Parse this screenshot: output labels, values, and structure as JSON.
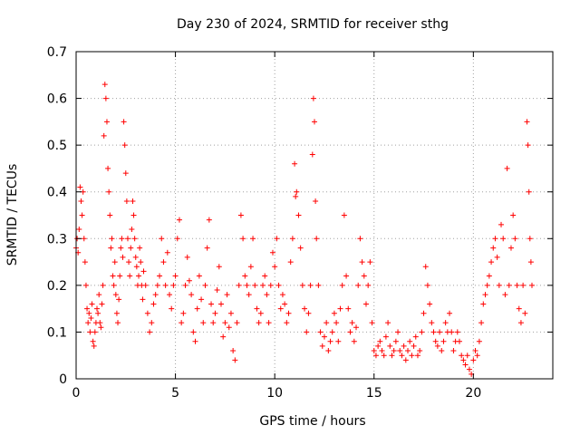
{
  "chart_data": {
    "type": "scatter",
    "title": "Day 230 of 2024, SRMTID for receiver sthg",
    "xlabel": "GPS time / hours",
    "ylabel": "SRMTID / TECUs",
    "xlim": [
      0,
      24
    ],
    "ylim": [
      0,
      0.7
    ],
    "xticks": [
      0,
      5,
      10,
      15,
      20
    ],
    "xtick_labels": [
      "0",
      "5",
      "10",
      "15",
      "20"
    ],
    "yticks": [
      0,
      0.1,
      0.2,
      0.3,
      0.4,
      0.5,
      0.6,
      0.7
    ],
    "ytick_labels": [
      "0",
      "0.1",
      "0.2",
      "0.3",
      "0.4",
      "0.5",
      "0.6",
      "0.7"
    ],
    "grid": true,
    "marker": "+",
    "color": "#ff0000",
    "series": [
      {
        "name": "SRMTID",
        "points": [
          [
            0.0,
            0.28
          ],
          [
            0.05,
            0.3
          ],
          [
            0.1,
            0.27
          ],
          [
            0.15,
            0.32
          ],
          [
            0.2,
            0.41
          ],
          [
            0.25,
            0.38
          ],
          [
            0.3,
            0.35
          ],
          [
            0.35,
            0.4
          ],
          [
            0.4,
            0.3
          ],
          [
            0.45,
            0.25
          ],
          [
            0.5,
            0.2
          ],
          [
            0.55,
            0.15
          ],
          [
            0.6,
            0.12
          ],
          [
            0.65,
            0.14
          ],
          [
            0.7,
            0.1
          ],
          [
            0.75,
            0.13
          ],
          [
            0.8,
            0.16
          ],
          [
            0.85,
            0.08
          ],
          [
            0.9,
            0.07
          ],
          [
            0.95,
            0.1
          ],
          [
            1.0,
            0.12
          ],
          [
            1.05,
            0.15
          ],
          [
            1.1,
            0.14
          ],
          [
            1.15,
            0.18
          ],
          [
            1.2,
            0.12
          ],
          [
            1.25,
            0.11
          ],
          [
            1.3,
            0.16
          ],
          [
            1.35,
            0.2
          ],
          [
            1.4,
            0.52
          ],
          [
            1.45,
            0.63
          ],
          [
            1.5,
            0.6
          ],
          [
            1.55,
            0.55
          ],
          [
            1.6,
            0.45
          ],
          [
            1.65,
            0.4
          ],
          [
            1.7,
            0.35
          ],
          [
            1.75,
            0.28
          ],
          [
            1.8,
            0.3
          ],
          [
            1.85,
            0.22
          ],
          [
            1.9,
            0.2
          ],
          [
            1.95,
            0.25
          ],
          [
            2.0,
            0.18
          ],
          [
            2.05,
            0.14
          ],
          [
            2.1,
            0.12
          ],
          [
            2.15,
            0.17
          ],
          [
            2.2,
            0.22
          ],
          [
            2.25,
            0.28
          ],
          [
            2.3,
            0.3
          ],
          [
            2.35,
            0.26
          ],
          [
            2.4,
            0.55
          ],
          [
            2.45,
            0.5
          ],
          [
            2.5,
            0.44
          ],
          [
            2.55,
            0.38
          ],
          [
            2.6,
            0.3
          ],
          [
            2.65,
            0.25
          ],
          [
            2.7,
            0.22
          ],
          [
            2.75,
            0.28
          ],
          [
            2.8,
            0.32
          ],
          [
            2.85,
            0.38
          ],
          [
            2.9,
            0.35
          ],
          [
            2.95,
            0.3
          ],
          [
            3.0,
            0.26
          ],
          [
            3.05,
            0.24
          ],
          [
            3.1,
            0.2
          ],
          [
            3.15,
            0.22
          ],
          [
            3.2,
            0.28
          ],
          [
            3.25,
            0.25
          ],
          [
            3.3,
            0.2
          ],
          [
            3.35,
            0.17
          ],
          [
            3.4,
            0.23
          ],
          [
            3.5,
            0.2
          ],
          [
            3.6,
            0.14
          ],
          [
            3.7,
            0.1
          ],
          [
            3.8,
            0.12
          ],
          [
            3.9,
            0.16
          ],
          [
            4.0,
            0.18
          ],
          [
            4.1,
            0.2
          ],
          [
            4.2,
            0.22
          ],
          [
            4.3,
            0.3
          ],
          [
            4.4,
            0.25
          ],
          [
            4.5,
            0.2
          ],
          [
            4.6,
            0.27
          ],
          [
            4.7,
            0.18
          ],
          [
            4.8,
            0.15
          ],
          [
            4.9,
            0.2
          ],
          [
            5.0,
            0.22
          ],
          [
            5.1,
            0.3
          ],
          [
            5.2,
            0.34
          ],
          [
            5.3,
            0.12
          ],
          [
            5.4,
            0.14
          ],
          [
            5.5,
            0.2
          ],
          [
            5.6,
            0.26
          ],
          [
            5.7,
            0.21
          ],
          [
            5.8,
            0.18
          ],
          [
            5.9,
            0.1
          ],
          [
            6.0,
            0.08
          ],
          [
            6.1,
            0.15
          ],
          [
            6.2,
            0.22
          ],
          [
            6.3,
            0.17
          ],
          [
            6.4,
            0.12
          ],
          [
            6.5,
            0.2
          ],
          [
            6.6,
            0.28
          ],
          [
            6.7,
            0.34
          ],
          [
            6.8,
            0.16
          ],
          [
            6.9,
            0.12
          ],
          [
            7.0,
            0.14
          ],
          [
            7.1,
            0.19
          ],
          [
            7.2,
            0.24
          ],
          [
            7.3,
            0.16
          ],
          [
            7.4,
            0.09
          ],
          [
            7.5,
            0.12
          ],
          [
            7.6,
            0.18
          ],
          [
            7.7,
            0.11
          ],
          [
            7.8,
            0.14
          ],
          [
            7.9,
            0.06
          ],
          [
            8.0,
            0.04
          ],
          [
            8.1,
            0.12
          ],
          [
            8.2,
            0.2
          ],
          [
            8.3,
            0.35
          ],
          [
            8.4,
            0.3
          ],
          [
            8.5,
            0.22
          ],
          [
            8.6,
            0.2
          ],
          [
            8.7,
            0.18
          ],
          [
            8.8,
            0.24
          ],
          [
            8.9,
            0.3
          ],
          [
            9.0,
            0.2
          ],
          [
            9.1,
            0.15
          ],
          [
            9.2,
            0.12
          ],
          [
            9.3,
            0.14
          ],
          [
            9.4,
            0.2
          ],
          [
            9.5,
            0.22
          ],
          [
            9.6,
            0.18
          ],
          [
            9.7,
            0.12
          ],
          [
            9.8,
            0.2
          ],
          [
            9.9,
            0.27
          ],
          [
            10.0,
            0.24
          ],
          [
            10.1,
            0.3
          ],
          [
            10.2,
            0.2
          ],
          [
            10.3,
            0.15
          ],
          [
            10.4,
            0.18
          ],
          [
            10.5,
            0.16
          ],
          [
            10.6,
            0.12
          ],
          [
            10.7,
            0.14
          ],
          [
            10.8,
            0.25
          ],
          [
            10.9,
            0.3
          ],
          [
            11.0,
            0.46
          ],
          [
            11.05,
            0.39
          ],
          [
            11.1,
            0.4
          ],
          [
            11.2,
            0.35
          ],
          [
            11.3,
            0.28
          ],
          [
            11.4,
            0.2
          ],
          [
            11.5,
            0.15
          ],
          [
            11.6,
            0.1
          ],
          [
            11.7,
            0.14
          ],
          [
            11.8,
            0.2
          ],
          [
            11.9,
            0.48
          ],
          [
            11.95,
            0.6
          ],
          [
            12.0,
            0.55
          ],
          [
            12.05,
            0.38
          ],
          [
            12.1,
            0.3
          ],
          [
            12.2,
            0.2
          ],
          [
            12.3,
            0.1
          ],
          [
            12.4,
            0.07
          ],
          [
            12.5,
            0.09
          ],
          [
            12.6,
            0.12
          ],
          [
            12.7,
            0.06
          ],
          [
            12.8,
            0.08
          ],
          [
            12.9,
            0.1
          ],
          [
            13.0,
            0.14
          ],
          [
            13.1,
            0.12
          ],
          [
            13.2,
            0.08
          ],
          [
            13.3,
            0.15
          ],
          [
            13.4,
            0.2
          ],
          [
            13.5,
            0.35
          ],
          [
            13.6,
            0.22
          ],
          [
            13.7,
            0.15
          ],
          [
            13.8,
            0.1
          ],
          [
            13.9,
            0.12
          ],
          [
            14.0,
            0.08
          ],
          [
            14.1,
            0.11
          ],
          [
            14.2,
            0.2
          ],
          [
            14.3,
            0.3
          ],
          [
            14.4,
            0.25
          ],
          [
            14.5,
            0.22
          ],
          [
            14.6,
            0.16
          ],
          [
            14.7,
            0.2
          ],
          [
            14.8,
            0.25
          ],
          [
            14.9,
            0.12
          ],
          [
            15.0,
            0.06
          ],
          [
            15.1,
            0.05
          ],
          [
            15.2,
            0.07
          ],
          [
            15.3,
            0.08
          ],
          [
            15.4,
            0.06
          ],
          [
            15.5,
            0.05
          ],
          [
            15.6,
            0.09
          ],
          [
            15.7,
            0.12
          ],
          [
            15.8,
            0.07
          ],
          [
            15.9,
            0.05
          ],
          [
            16.0,
            0.06
          ],
          [
            16.1,
            0.08
          ],
          [
            16.2,
            0.1
          ],
          [
            16.3,
            0.06
          ],
          [
            16.4,
            0.05
          ],
          [
            16.5,
            0.07
          ],
          [
            16.6,
            0.04
          ],
          [
            16.7,
            0.06
          ],
          [
            16.8,
            0.08
          ],
          [
            16.9,
            0.05
          ],
          [
            17.0,
            0.07
          ],
          [
            17.1,
            0.09
          ],
          [
            17.2,
            0.05
          ],
          [
            17.3,
            0.06
          ],
          [
            17.4,
            0.1
          ],
          [
            17.5,
            0.14
          ],
          [
            17.6,
            0.24
          ],
          [
            17.7,
            0.2
          ],
          [
            17.8,
            0.16
          ],
          [
            17.9,
            0.12
          ],
          [
            18.0,
            0.1
          ],
          [
            18.1,
            0.08
          ],
          [
            18.2,
            0.07
          ],
          [
            18.3,
            0.1
          ],
          [
            18.4,
            0.06
          ],
          [
            18.5,
            0.08
          ],
          [
            18.6,
            0.12
          ],
          [
            18.7,
            0.1
          ],
          [
            18.8,
            0.14
          ],
          [
            18.9,
            0.1
          ],
          [
            19.0,
            0.06
          ],
          [
            19.1,
            0.08
          ],
          [
            19.2,
            0.1
          ],
          [
            19.3,
            0.08
          ],
          [
            19.4,
            0.05
          ],
          [
            19.5,
            0.04
          ],
          [
            19.6,
            0.03
          ],
          [
            19.7,
            0.05
          ],
          [
            19.8,
            0.02
          ],
          [
            19.9,
            0.01
          ],
          [
            20.0,
            0.04
          ],
          [
            20.1,
            0.06
          ],
          [
            20.2,
            0.05
          ],
          [
            20.3,
            0.08
          ],
          [
            20.4,
            0.12
          ],
          [
            20.5,
            0.16
          ],
          [
            20.6,
            0.18
          ],
          [
            20.7,
            0.2
          ],
          [
            20.8,
            0.22
          ],
          [
            20.9,
            0.25
          ],
          [
            21.0,
            0.28
          ],
          [
            21.1,
            0.3
          ],
          [
            21.2,
            0.26
          ],
          [
            21.3,
            0.2
          ],
          [
            21.4,
            0.33
          ],
          [
            21.5,
            0.3
          ],
          [
            21.6,
            0.18
          ],
          [
            21.7,
            0.45
          ],
          [
            21.8,
            0.2
          ],
          [
            21.9,
            0.28
          ],
          [
            22.0,
            0.35
          ],
          [
            22.1,
            0.3
          ],
          [
            22.2,
            0.2
          ],
          [
            22.3,
            0.15
          ],
          [
            22.4,
            0.12
          ],
          [
            22.5,
            0.2
          ],
          [
            22.6,
            0.14
          ],
          [
            22.7,
            0.55
          ],
          [
            22.75,
            0.5
          ],
          [
            22.8,
            0.4
          ],
          [
            22.85,
            0.3
          ],
          [
            22.9,
            0.25
          ],
          [
            22.95,
            0.2
          ]
        ]
      }
    ]
  }
}
